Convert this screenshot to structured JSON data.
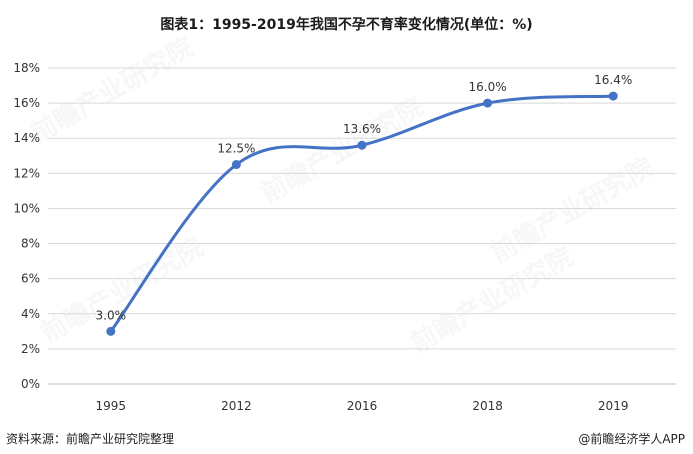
{
  "title": "图表1：1995-2019年我国不孕不育率变化情况(单位：%)",
  "footer": {
    "source": "资料来源：前瞻产业研究院整理",
    "credit": "@前瞻经济学人APP"
  },
  "watermark": "前瞻产业研究院",
  "colors": {
    "line": "#4472c4",
    "grid": "#d9d9d9",
    "axis": "#bfbfbf"
  },
  "chart_data": {
    "type": "line",
    "title": "图表1：1995-2019年我国不孕不育率变化情况(单位：%)",
    "categories": [
      "1995",
      "2012",
      "2016",
      "2018",
      "2019"
    ],
    "series": [
      {
        "values": [
          3.0,
          12.5,
          13.6,
          16.0,
          16.4
        ],
        "labels": [
          "3.0%",
          "12.5%",
          "13.6%",
          "16.0%",
          "16.4%"
        ]
      }
    ],
    "ylim": [
      0,
      18
    ],
    "yticks": [
      "0%",
      "2%",
      "4%",
      "6%",
      "8%",
      "10%",
      "12%",
      "14%",
      "16%",
      "18%"
    ],
    "ytick_values": [
      0,
      2,
      4,
      6,
      8,
      10,
      12,
      14,
      16,
      18
    ],
    "grid": true,
    "xlabel": "",
    "ylabel": "",
    "smooth": true
  }
}
